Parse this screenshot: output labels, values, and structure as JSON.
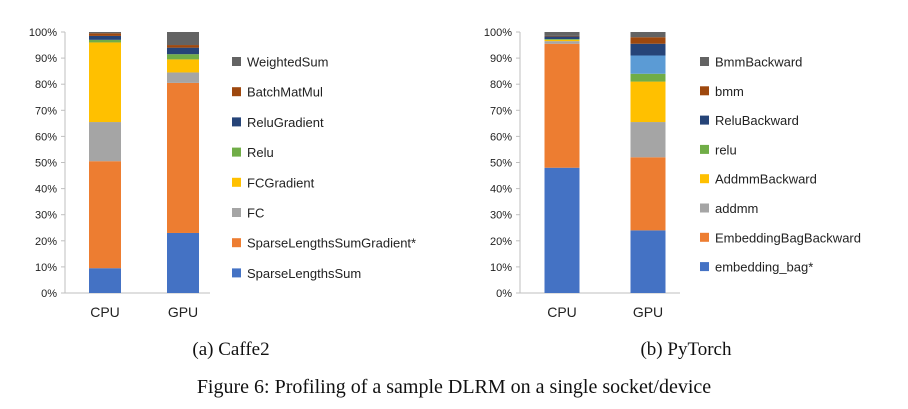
{
  "figure": {
    "caption": "Figure 6: Profiling of a sample DLRM on a single socket/device"
  },
  "chart_data": [
    {
      "type": "bar",
      "stacked": true,
      "normalized": true,
      "subcaption": "(a) Caffe2",
      "categories": [
        "CPU",
        "GPU"
      ],
      "ylim": [
        0,
        100
      ],
      "yticks": [
        "0%",
        "10%",
        "20%",
        "30%",
        "40%",
        "50%",
        "60%",
        "70%",
        "80%",
        "90%",
        "100%"
      ],
      "legend_position": "right",
      "series": [
        {
          "name": "SparseLengthsSum",
          "color": "#4472C4",
          "values": [
            9.5,
            23
          ]
        },
        {
          "name": "SparseLengthsSumGradient*",
          "color": "#ED7D31",
          "values": [
            41,
            57.5
          ]
        },
        {
          "name": "FC",
          "color": "#A5A5A5",
          "values": [
            15,
            4
          ]
        },
        {
          "name": "FCGradient",
          "color": "#FFC000",
          "values": [
            30.5,
            5
          ]
        },
        {
          "name": "Relu",
          "color": "#70AD47",
          "values": [
            1,
            2
          ]
        },
        {
          "name": "ReluGradient",
          "color": "#264478",
          "values": [
            1.5,
            2.5
          ]
        },
        {
          "name": "BatchMatMul",
          "color": "#9E480E",
          "values": [
            1,
            1
          ]
        },
        {
          "name": "WeightedSum",
          "color": "#636363",
          "values": [
            0.5,
            5
          ]
        }
      ]
    },
    {
      "type": "bar",
      "stacked": true,
      "normalized": true,
      "subcaption": "(b) PyTorch",
      "categories": [
        "CPU",
        "GPU"
      ],
      "ylim": [
        0,
        100
      ],
      "yticks": [
        "0%",
        "10%",
        "20%",
        "30%",
        "40%",
        "50%",
        "60%",
        "70%",
        "80%",
        "90%",
        "100%"
      ],
      "legend_position": "right",
      "series": [
        {
          "name": "embedding_bag*",
          "color": "#4472C4",
          "values": [
            48,
            24
          ]
        },
        {
          "name": "EmbeddingBagBackward",
          "color": "#ED7D31",
          "values": [
            47.5,
            28
          ]
        },
        {
          "name": "addmm",
          "color": "#A5A5A5",
          "values": [
            1,
            13.5
          ]
        },
        {
          "name": "AddmmBackward",
          "color": "#FFC000",
          "values": [
            0.5,
            15.5
          ]
        },
        {
          "name": "relu",
          "color": "#70AD47",
          "values": [
            0.3,
            3
          ]
        },
        {
          "name": "ReluBackward",
          "color": "#264478",
          "values": [
            1,
            4.5
          ]
        },
        {
          "name": "bmm",
          "color": "#9E480E",
          "values": [
            0.2,
            2.5
          ]
        },
        {
          "name": "BmmBackward",
          "color": "#636363",
          "values": [
            1.5,
            2
          ]
        }
      ],
      "extra_segments": [
        {
          "category": "GPU",
          "color": "#5B9BD5",
          "after_series": "relu",
          "value": 7
        }
      ]
    }
  ]
}
